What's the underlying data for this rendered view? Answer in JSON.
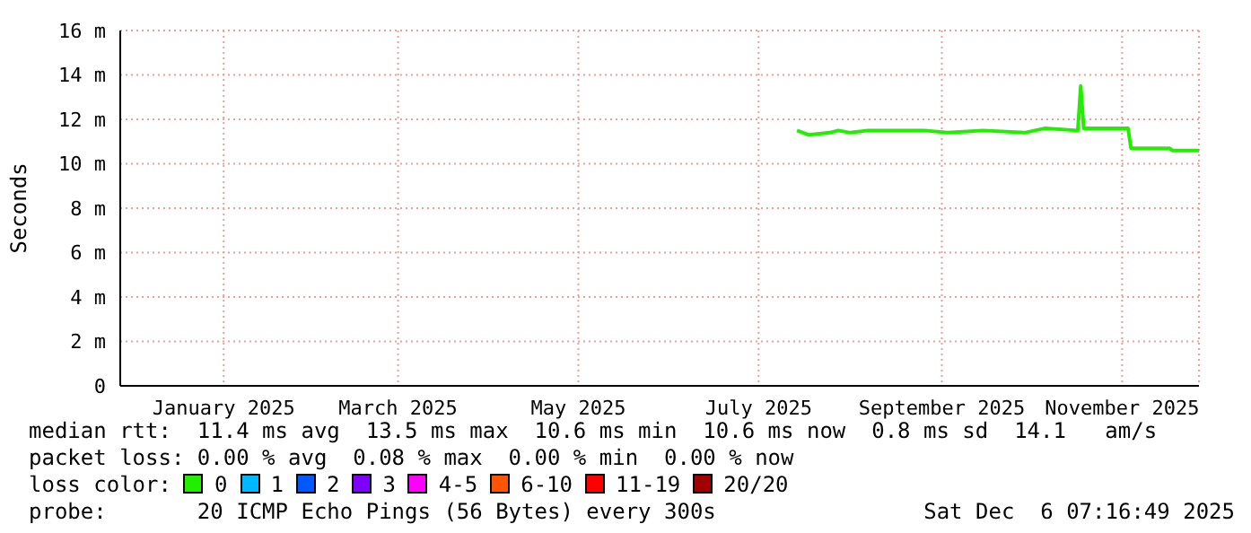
{
  "chart_data": {
    "type": "line",
    "ylabel": "Seconds",
    "legend_title": "loss color:",
    "x": [
      "2025-07-23",
      "2025-07-27",
      "2025-08-03",
      "2025-08-06",
      "2025-08-10",
      "2025-08-16",
      "2025-09-04",
      "2025-09-12",
      "2025-09-24",
      "2025-10-08",
      "2025-10-15",
      "2025-10-26",
      "2025-10-27",
      "2025-10-28",
      "2025-11-12",
      "2025-11-13",
      "2025-11-26",
      "2025-11-27",
      "2025-12-06"
    ],
    "series": [
      {
        "name": "0",
        "color": "#22ee00",
        "values": [
          11.5,
          11.3,
          11.4,
          11.5,
          11.4,
          11.5,
          11.5,
          11.4,
          11.5,
          11.4,
          11.6,
          11.5,
          13.5,
          11.6,
          11.6,
          10.7,
          10.7,
          10.6,
          10.6
        ]
      },
      {
        "name": "1",
        "color": "#00b8ff",
        "values": [
          null,
          null,
          null,
          null,
          null,
          null,
          null,
          null,
          null,
          null,
          null,
          null,
          null,
          null,
          null,
          null,
          null,
          null,
          null
        ]
      },
      {
        "name": "2",
        "color": "#0059ff",
        "values": [
          null,
          null,
          null,
          null,
          null,
          null,
          null,
          null,
          null,
          null,
          null,
          null,
          null,
          null,
          null,
          null,
          null,
          null,
          null
        ]
      },
      {
        "name": "3",
        "color": "#7e00ff",
        "values": [
          null,
          null,
          null,
          null,
          null,
          null,
          null,
          null,
          null,
          null,
          null,
          null,
          null,
          null,
          null,
          null,
          null,
          null,
          null
        ]
      },
      {
        "name": "4-5",
        "color": "#ff00ff",
        "values": [
          null,
          null,
          null,
          null,
          null,
          null,
          null,
          null,
          null,
          null,
          null,
          null,
          null,
          null,
          null,
          null,
          null,
          null,
          null
        ]
      },
      {
        "name": "6-10",
        "color": "#ff5500",
        "values": [
          null,
          null,
          null,
          null,
          null,
          null,
          null,
          null,
          null,
          null,
          null,
          null,
          null,
          null,
          null,
          null,
          null,
          null,
          null
        ]
      },
      {
        "name": "11-19",
        "color": "#ff0000",
        "values": [
          null,
          null,
          null,
          null,
          null,
          null,
          null,
          null,
          null,
          null,
          null,
          null,
          null,
          null,
          null,
          null,
          null,
          null,
          null
        ]
      },
      {
        "name": "20/20",
        "color": "#a10000",
        "values": [
          null,
          null,
          null,
          null,
          null,
          null,
          null,
          null,
          null,
          null,
          null,
          null,
          null,
          null,
          null,
          null,
          null,
          null,
          null
        ]
      }
    ],
    "xlim": [
      "2024-12-06",
      "2025-12-06"
    ],
    "xticks": [
      {
        "value": "2025-01-10",
        "label": "January 2025"
      },
      {
        "value": "2025-03-10",
        "label": "March 2025"
      },
      {
        "value": "2025-05-10",
        "label": "May 2025"
      },
      {
        "value": "2025-07-10",
        "label": "July 2025"
      },
      {
        "value": "2025-09-10",
        "label": "September 2025"
      },
      {
        "value": "2025-11-10",
        "label": "November 2025"
      }
    ],
    "ylim": [
      0,
      16
    ],
    "yticks": [
      0,
      {
        "value": 2,
        "label": "2 m"
      },
      {
        "value": 4,
        "label": "4 m"
      },
      {
        "value": 6,
        "label": "6 m"
      },
      {
        "value": 8,
        "label": "8 m"
      },
      {
        "value": 10,
        "label": "10 m"
      },
      {
        "value": 12,
        "label": "12 m"
      },
      {
        "value": 14,
        "label": "14 m"
      },
      {
        "value": 16,
        "label": "16 m"
      }
    ],
    "grid": true,
    "legend": "bottom",
    "marker": "none",
    "line_style": "solid",
    "annotations": [
      "median rtt:  11.4 ms avg  13.5 ms max  10.6 ms min  10.6 ms now  0.8 ms sd  14.1   am/s",
      "packet loss: 0.00 % avg  0.08 % max  0.00 % min  0.00 % now",
      "probe:       20 ICMP Echo Pings (56 Bytes) every 300s",
      "Sat Dec  6 07:16:49 2025"
    ]
  }
}
